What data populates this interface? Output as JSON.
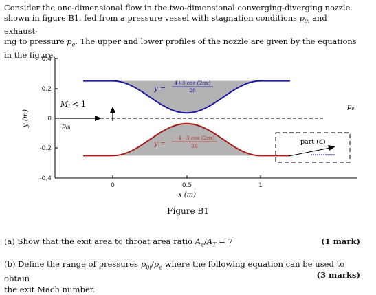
{
  "intro": {
    "line1": "Consider the one-dimensional flow in the two-dimensional converging-diverging nozzle",
    "line2a": "shown in figure B1, fed from a pressure vessel with stagnation conditions ",
    "line2b": " and exhaust-",
    "line3a": "ing to pressure ",
    "line3b": ". The upper and lower profiles of the nozzle are given by the equations",
    "line4": "in the figure.",
    "p0i_main": "p",
    "p0i_sub": "0i",
    "pe_main": "p",
    "pe_sub": "e"
  },
  "figure": {
    "caption": "Figure B1",
    "ylabel": "y (m)",
    "xlabel": "x (m)",
    "yticks": [
      "0.4",
      "0.2",
      "0",
      "-0.2",
      "-0.4"
    ],
    "xticks": [
      "0",
      "0.5",
      "1"
    ],
    "mach_label": "M_i < 1",
    "p0i_label": "p0i",
    "pe_label": "pe",
    "upper_eq_lhs": "y =",
    "upper_eq_num": "4+3 cos (2πx)",
    "upper_eq_den": "28",
    "lower_eq_lhs": "y =",
    "lower_eq_num": "−4−3 cos (2πx)",
    "lower_eq_den": "28",
    "part_label": "part (d)",
    "colors": {
      "upper": "#1a1aa6",
      "lower": "#a81c1c",
      "fill": "#b3b3b3"
    }
  },
  "questions": {
    "a_text": "(a) Show that the exit area to throat area ratio A_e/A_T = 7",
    "a_marks": "(1 mark)",
    "b_line1": "(b) Define the range of pressures p0i/pe where the following equation can be used to obtain",
    "b_line2": "the exit Mach number.",
    "b_marks": "(3 marks)"
  }
}
